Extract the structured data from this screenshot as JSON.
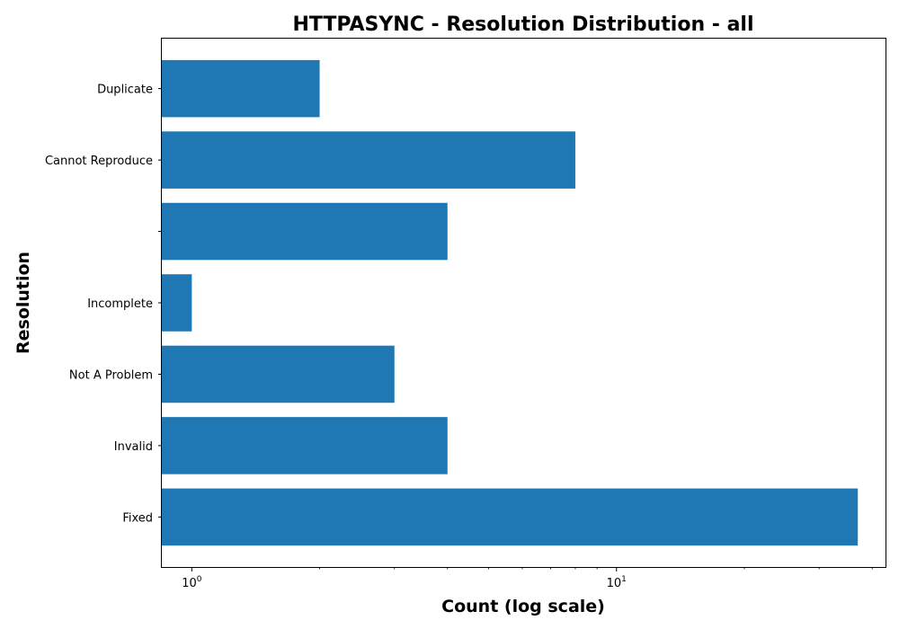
{
  "chart_data": {
    "type": "bar",
    "orientation": "horizontal",
    "title": "HTTPASYNC - Resolution Distribution - all",
    "xlabel": "Count (log scale)",
    "ylabel": "Resolution",
    "x_scale": "log",
    "xlim": [
      0.85,
      43
    ],
    "x_ticks": [
      {
        "value": 1,
        "base": "10",
        "exp": "0"
      },
      {
        "value": 10,
        "base": "10",
        "exp": "1"
      }
    ],
    "categories": [
      "Fixed",
      "Invalid",
      "Not A Problem",
      "Incomplete",
      "",
      "Cannot Reproduce",
      "Duplicate"
    ],
    "values": [
      37,
      4,
      3,
      1,
      4,
      8,
      2
    ],
    "bar_color": "#1f77b4",
    "grid": false,
    "legend": "none"
  }
}
